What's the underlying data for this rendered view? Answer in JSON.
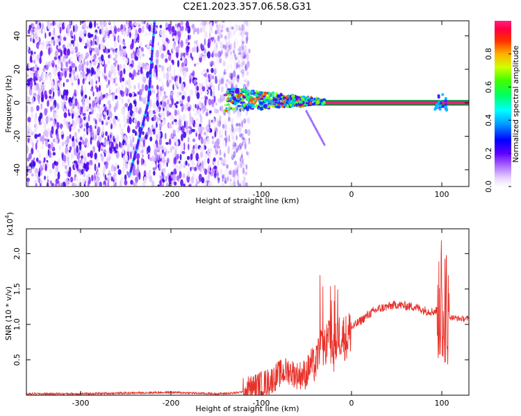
{
  "title": "C2E1.2023.357.06.58.G31",
  "chart_data": [
    {
      "type": "heatmap",
      "xlabel": "Height of straight line (km)",
      "ylabel": "Frequency (Hz)",
      "xlim": [
        -360,
        130
      ],
      "ylim": [
        -50,
        49
      ],
      "xticks": [
        "-300",
        "-200",
        "-100",
        "0",
        "100"
      ],
      "yticks": [
        "-40",
        "-20",
        "0",
        "20",
        "40"
      ],
      "colorbar": {
        "label": "Normalized spectral amplitude",
        "range": [
          0,
          1
        ],
        "ticks": [
          "0.0",
          "0.2",
          "0.4",
          "0.6",
          "0.8"
        ]
      },
      "features": {
        "noise_region_x": [
          -360,
          -125
        ],
        "diagonal_track": [
          [
            -245,
            -42
          ],
          [
            -225,
            0
          ],
          [
            -218,
            49
          ]
        ],
        "carrier_band": {
          "x": [
            -140,
            130
          ],
          "freq": 0
        },
        "faint_branch": [
          [
            -50,
            -5
          ],
          [
            -30,
            -25
          ]
        ]
      }
    },
    {
      "type": "line",
      "xlabel": "Height of straight line (km)",
      "ylabel": "SNR (10 * v/v)",
      "scale_note": "(x10",
      "scale_exp": "4",
      "scale_close": ")",
      "xlim": [
        -360,
        130
      ],
      "ylim": [
        0,
        2.35
      ],
      "xticks": [
        "-300",
        "-200",
        "-100",
        "0",
        "100"
      ],
      "yticks": [
        "0.5",
        "1.0",
        "1.5",
        "2.0"
      ],
      "series": [
        {
          "color": "#e8312a",
          "x": [
            -360,
            -300,
            -250,
            -200,
            -150,
            -130,
            -120,
            -110,
            -100,
            -90,
            -80,
            -70,
            -60,
            -50,
            -45,
            -40,
            -35,
            -30,
            -25,
            -20,
            -15,
            -10,
            -5,
            0,
            10,
            20,
            30,
            40,
            50,
            60,
            70,
            80,
            90,
            95,
            100,
            103,
            106,
            110,
            120,
            130
          ],
          "y": [
            0.02,
            0.02,
            0.03,
            0.04,
            0.02,
            0.03,
            0.05,
            0.1,
            0.15,
            0.2,
            0.3,
            0.35,
            0.28,
            0.3,
            0.45,
            0.4,
            0.7,
            0.65,
            0.8,
            0.6,
            0.85,
            0.85,
            0.8,
            0.95,
            1.05,
            1.15,
            1.22,
            1.25,
            1.28,
            1.26,
            1.25,
            1.2,
            1.18,
            1.2,
            1.15,
            1.1,
            1.12,
            1.1,
            1.08,
            1.08
          ]
        }
      ]
    }
  ]
}
